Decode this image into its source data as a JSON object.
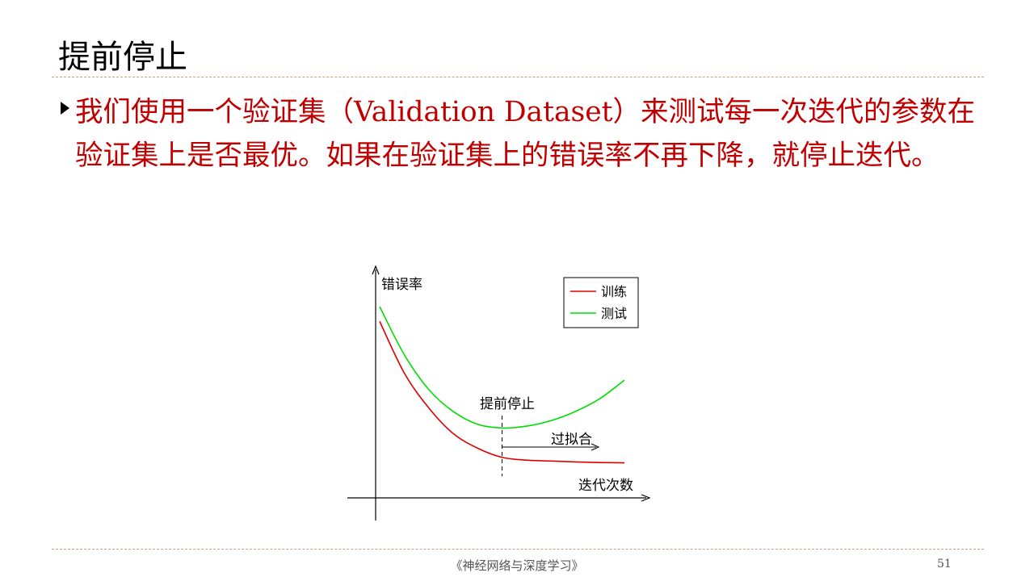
{
  "slide": {
    "title": "提前停止",
    "body": "我们使用一个验证集（Validation Dataset）来测试每一次迭代的参数在验证集上是否最优。如果在验证集上的错误率不再下降，就停止迭代。",
    "footer": "《神经网络与深度学习》",
    "page_number": "51"
  },
  "chart_data": {
    "type": "line",
    "ylabel": "错误率",
    "xlabel": "迭代次数",
    "legend": {
      "placement": "top-right",
      "entries": [
        "训练",
        "测试"
      ]
    },
    "series": [
      {
        "name": "训练",
        "color": "#e00000",
        "x": [
          0,
          1,
          2,
          3,
          4,
          5,
          6,
          7,
          8,
          9,
          10
        ],
        "y": [
          0.92,
          0.64,
          0.45,
          0.31,
          0.23,
          0.18,
          0.165,
          0.16,
          0.155,
          0.152,
          0.15
        ]
      },
      {
        "name": "测试",
        "color": "#00dd00",
        "x": [
          0,
          1,
          2,
          3,
          4,
          5,
          6,
          7,
          8,
          9,
          10
        ],
        "y": [
          1.0,
          0.74,
          0.55,
          0.43,
          0.36,
          0.34,
          0.35,
          0.38,
          0.43,
          0.5,
          0.6
        ]
      }
    ],
    "annotations": [
      {
        "text": "提前停止",
        "x": 5
      },
      {
        "text": "过拟合"
      }
    ]
  }
}
